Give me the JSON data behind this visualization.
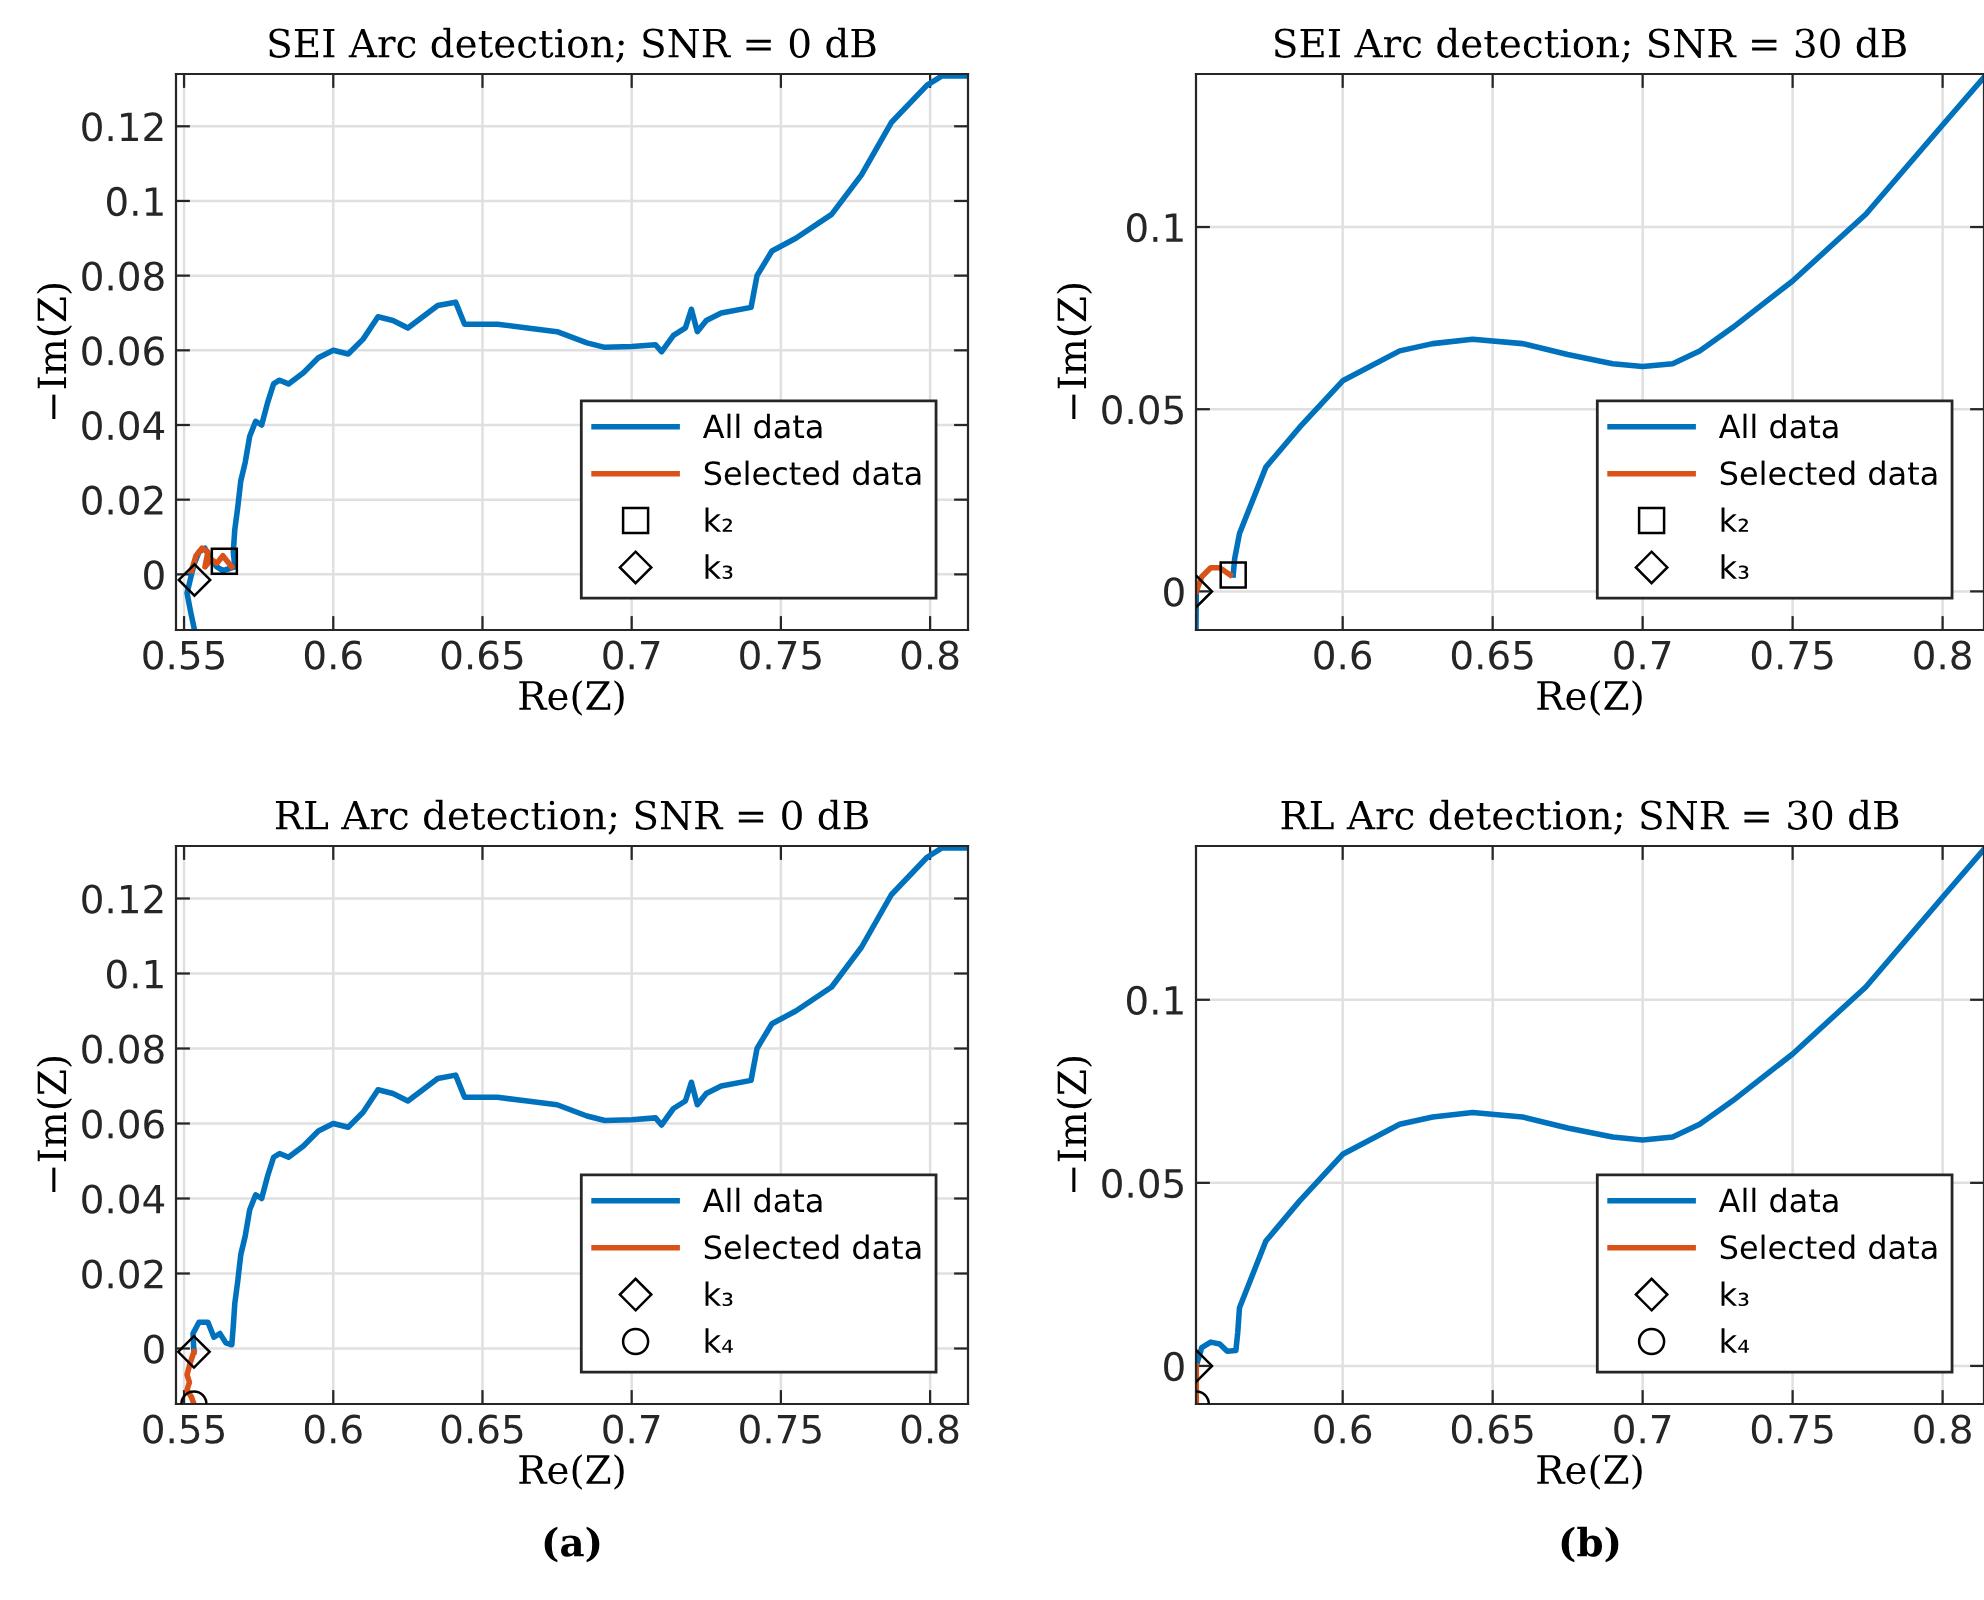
{
  "chart_data": [
    {
      "type": "line",
      "title": "SEI Arc detection; SNR = 0 dB",
      "xlabel": "Re(Z)",
      "ylabel": "−Im(Z)",
      "xlim": [
        0.5473,
        0.8127
      ],
      "ylim": [
        -0.0149,
        0.134
      ],
      "xticks": [
        0.55,
        0.6,
        0.65,
        0.7,
        0.75,
        0.8
      ],
      "yticks": [
        0,
        0.02,
        0.04,
        0.06,
        0.08,
        0.1,
        0.12
      ],
      "grid": true,
      "legend": "lower right",
      "line_style": "solid",
      "series": [
        {
          "name": "All data",
          "type": "line",
          "color": "#0072bd",
          "x": [
            0.5535,
            0.5522,
            0.551,
            0.5525,
            0.5535,
            0.555,
            0.557,
            0.559,
            0.561,
            0.563,
            0.565,
            0.567,
            0.5665,
            0.567,
            0.568,
            0.569,
            0.5705,
            0.572,
            0.574,
            0.576,
            0.578,
            0.58,
            0.582,
            0.585,
            0.59,
            0.595,
            0.6,
            0.605,
            0.61,
            0.615,
            0.62,
            0.625,
            0.63,
            0.635,
            0.641,
            0.644,
            0.655,
            0.665,
            0.675,
            0.685,
            0.691,
            0.7,
            0.708,
            0.71,
            0.714,
            0.718,
            0.72,
            0.722,
            0.725,
            0.73,
            0.74,
            0.742,
            0.747,
            0.755,
            0.767,
            0.777,
            0.787,
            0.799,
            0.804,
            0.8127
          ],
          "values": [
            -0.0149,
            -0.01,
            -0.005,
            0.0,
            0.003,
            0.006,
            0.007,
            0.004,
            0.002,
            0.001,
            0.0015,
            0.002,
            0.006,
            0.012,
            0.018,
            0.025,
            0.03,
            0.037,
            0.041,
            0.04,
            0.046,
            0.051,
            0.052,
            0.051,
            0.054,
            0.058,
            0.06,
            0.059,
            0.063,
            0.069,
            0.068,
            0.066,
            0.069,
            0.072,
            0.0729,
            0.067,
            0.067,
            0.066,
            0.065,
            0.062,
            0.0608,
            0.061,
            0.0615,
            0.0596,
            0.064,
            0.066,
            0.071,
            0.065,
            0.068,
            0.07,
            0.0715,
            0.08,
            0.0866,
            0.09,
            0.0964,
            0.107,
            0.121,
            0.131,
            0.1335,
            0.1335
          ]
        },
        {
          "name": "Selected data",
          "type": "line",
          "color": "#d95319",
          "x": [
            0.5525,
            0.554,
            0.556,
            0.558,
            0.557,
            0.559,
            0.561,
            0.563,
            0.565,
            0.566
          ],
          "values": [
            0.001,
            0.005,
            0.007,
            0.006,
            0.002,
            0.004,
            0.003,
            0.005,
            0.003,
            0.002
          ]
        },
        {
          "name": "k₂",
          "type": "scatter",
          "marker": "square",
          "color": "#000000",
          "x": [
            0.5635
          ],
          "values": [
            0.0035
          ]
        },
        {
          "name": "k₃",
          "type": "scatter",
          "marker": "diamond",
          "color": "#000000",
          "x": [
            0.5535
          ],
          "values": [
            -0.0015
          ]
        }
      ]
    },
    {
      "type": "line",
      "title": "SEI Arc detection; SNR = 30 dB",
      "xlabel": "Re(Z)",
      "ylabel": "−Im(Z)",
      "xlim": [
        0.5511,
        0.8138
      ],
      "ylim": [
        -0.0106,
        0.142
      ],
      "xticks": [
        0.6,
        0.65,
        0.7,
        0.75,
        0.8
      ],
      "yticks": [
        0,
        0.05,
        0.1
      ],
      "grid": true,
      "legend": "lower right",
      "line_style": "solid",
      "series": [
        {
          "name": "All data",
          "color": "#0072bd",
          "x": [
            0.5511,
            0.5512,
            0.553,
            0.556,
            0.559,
            0.5625,
            0.5635,
            0.564,
            0.5656,
            0.5744,
            0.5856,
            0.6,
            0.619,
            0.63,
            0.6433,
            0.66,
            0.675,
            0.69,
            0.7,
            0.71,
            0.719,
            0.73,
            0.75,
            0.7744,
            0.8,
            0.8136
          ],
          "values": [
            -0.0106,
            0.0,
            null,
            null,
            null,
            null,
            0.0045,
            0.009,
            0.0159,
            0.0341,
            0.045,
            0.0578,
            0.066,
            0.068,
            0.0692,
            0.068,
            0.065,
            0.0625,
            0.0617,
            0.0625,
            0.066,
            0.0724,
            0.0852,
            0.1035,
            0.128,
            0.1409
          ]
        },
        {
          "name": "Selected data",
          "type": "line",
          "color": "#d95319",
          "x": [
            0.5512,
            0.553,
            0.556,
            0.559,
            0.5625
          ],
          "values": [
            0.0,
            0.004,
            0.0065,
            0.0065,
            0.0045
          ]
        },
        {
          "name": "k₂",
          "type": "scatter",
          "marker": "square",
          "color": "#000000",
          "x": [
            0.5635
          ],
          "values": [
            0.0045
          ]
        },
        {
          "name": "k₃",
          "type": "scatter",
          "marker": "diamond",
          "color": "#000000",
          "x": [
            0.5512
          ],
          "values": [
            0.0
          ]
        }
      ]
    },
    {
      "type": "line",
      "title": "RL Arc detection; SNR = 0 dB",
      "xlabel": "Re(Z)",
      "ylabel": "−Im(Z)",
      "xlim": [
        0.5473,
        0.8127
      ],
      "ylim": [
        -0.0148,
        0.134
      ],
      "xticks": [
        0.55,
        0.6,
        0.65,
        0.7,
        0.75,
        0.8
      ],
      "yticks": [
        0,
        0.02,
        0.04,
        0.06,
        0.08,
        0.1,
        0.12
      ],
      "grid": true,
      "legend": "lower right",
      "line_style": "solid",
      "annotations": [
        "(a)"
      ],
      "series": [
        {
          "name": "All data",
          "type": "line",
          "color": "#0072bd",
          "x": [
            0.5533,
            0.553,
            0.555,
            0.558,
            0.56,
            0.562,
            0.564,
            0.566,
            0.5665,
            0.567,
            0.568,
            0.569,
            0.5705,
            0.572,
            0.574,
            0.576,
            0.578,
            0.58,
            0.582,
            0.585,
            0.59,
            0.595,
            0.6,
            0.605,
            0.61,
            0.615,
            0.62,
            0.625,
            0.63,
            0.635,
            0.641,
            0.644,
            0.655,
            0.665,
            0.675,
            0.685,
            0.691,
            0.7,
            0.708,
            0.71,
            0.714,
            0.718,
            0.72,
            0.722,
            0.725,
            0.73,
            0.74,
            0.742,
            0.747,
            0.755,
            0.767,
            0.777,
            0.787,
            0.799,
            0.804,
            0.8127
          ],
          "values": [
            -0.0009,
            0.004,
            0.007,
            0.007,
            0.003,
            0.004,
            0.0015,
            0.001,
            0.006,
            0.012,
            0.018,
            0.025,
            0.03,
            0.037,
            0.041,
            0.04,
            0.046,
            0.051,
            0.052,
            0.051,
            0.054,
            0.058,
            0.06,
            0.059,
            0.063,
            0.069,
            0.068,
            0.066,
            0.069,
            0.072,
            0.0729,
            0.067,
            0.067,
            0.066,
            0.065,
            0.062,
            0.0608,
            0.061,
            0.0615,
            0.0596,
            0.064,
            0.066,
            0.071,
            0.065,
            0.068,
            0.07,
            0.0715,
            0.08,
            0.0866,
            0.09,
            0.0964,
            0.107,
            0.121,
            0.131,
            0.1335,
            0.1335
          ]
        },
        {
          "name": "Selected data",
          "type": "line",
          "color": "#d95319",
          "x": [
            0.5533,
            0.552,
            0.551,
            0.5518,
            0.551,
            0.5525,
            0.5533
          ],
          "values": [
            -0.0009,
            -0.004,
            -0.007,
            -0.009,
            -0.011,
            -0.013,
            -0.0148
          ]
        },
        {
          "name": "k₃",
          "type": "scatter",
          "marker": "diamond",
          "color": "#000000",
          "x": [
            0.5533
          ],
          "values": [
            -0.0009
          ]
        },
        {
          "name": "k₄",
          "type": "scatter",
          "marker": "circle",
          "color": "#000000",
          "x": [
            0.5533
          ],
          "values": [
            -0.0148
          ]
        }
      ]
    },
    {
      "type": "line",
      "title": "RL Arc detection; SNR = 30 dB",
      "xlabel": "Re(Z)",
      "ylabel": "−Im(Z)",
      "xlim": [
        0.5511,
        0.8138
      ],
      "ylim": [
        -0.0104,
        0.142
      ],
      "xticks": [
        0.6,
        0.65,
        0.7,
        0.75,
        0.8
      ],
      "yticks": [
        0,
        0.05,
        0.1
      ],
      "grid": true,
      "legend": "lower right",
      "line_style": "solid",
      "annotations": [
        "(b)"
      ],
      "series": [
        {
          "name": "All data",
          "type": "line",
          "color": "#0072bd",
          "x": [
            0.5512,
            0.553,
            0.556,
            0.559,
            0.5615,
            0.5644,
            0.565,
            0.5656,
            0.5744,
            0.5856,
            0.6,
            0.619,
            0.63,
            0.6433,
            0.66,
            0.675,
            0.69,
            0.7,
            0.71,
            0.719,
            0.73,
            0.75,
            0.7744,
            0.8,
            0.8136
          ],
          "values": [
            0.0,
            0.005,
            0.0065,
            0.006,
            0.004,
            0.0042,
            0.009,
            0.0159,
            0.0341,
            0.045,
            0.0578,
            0.066,
            0.068,
            0.0692,
            0.068,
            0.065,
            0.0625,
            0.0617,
            0.0625,
            0.066,
            0.0724,
            0.0852,
            0.1035,
            0.128,
            0.1409
          ]
        },
        {
          "name": "Selected data",
          "type": "line",
          "color": "#d95319",
          "x": [
            0.5512,
            0.5512
          ],
          "values": [
            0.0,
            -0.0104
          ]
        },
        {
          "name": "k₃",
          "type": "scatter",
          "marker": "diamond",
          "color": "#000000",
          "x": [
            0.5512
          ],
          "values": [
            0.0
          ]
        },
        {
          "name": "k₄",
          "type": "scatter",
          "marker": "circle",
          "color": "#000000",
          "x": [
            0.5512
          ],
          "values": [
            -0.0104
          ]
        }
      ]
    }
  ]
}
